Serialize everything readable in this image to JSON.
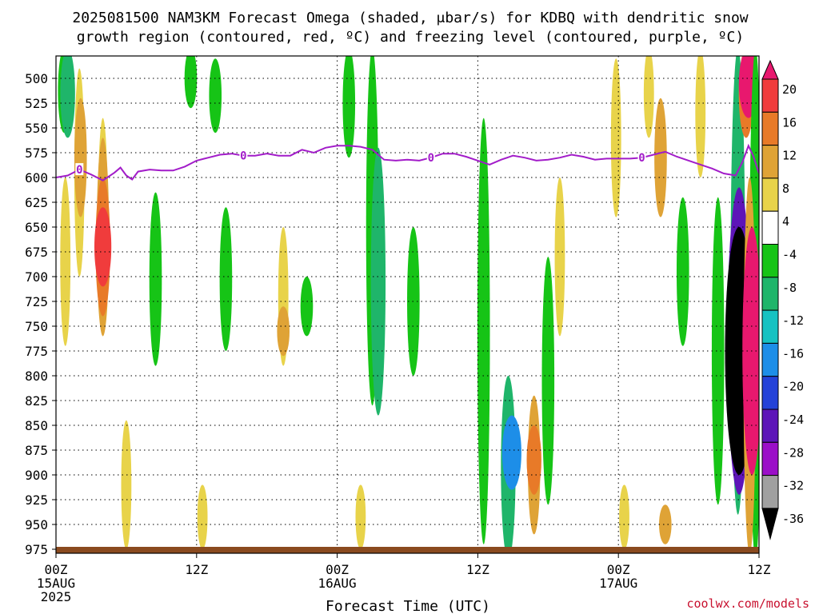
{
  "title": {
    "line1": "2025081500 NAM3KM Forecast Omega (shaded, μbar/s) for KDBQ with dendritic snow",
    "line2": "growth region (contoured, red, ºC) and freezing level (contoured, purple, ºC)"
  },
  "credit": "coolwx.com/models",
  "chart_data": {
    "type": "heatmap",
    "title": "2025081500 NAM3KM Forecast Omega (shaded, μbar/s) for KDBQ with dendritic snow growth region (contoured, red, ºC) and freezing level (contoured, purple, ºC)",
    "xlabel": "Forecast Time (UTC)",
    "ylabel": "",
    "x_range_hours": [
      0,
      60
    ],
    "y_range_mb": [
      470,
      985
    ],
    "y_scale": "pressure (reversed)",
    "grid": true,
    "y_ticks": [
      500,
      525,
      550,
      575,
      600,
      625,
      650,
      675,
      700,
      725,
      750,
      775,
      800,
      825,
      850,
      875,
      900,
      925,
      950,
      975
    ],
    "x_ticks": [
      {
        "hour": 0,
        "lines": [
          "00Z",
          "15AUG",
          "2025"
        ]
      },
      {
        "hour": 12,
        "lines": [
          "12Z"
        ]
      },
      {
        "hour": 24,
        "lines": [
          "00Z",
          "16AUG"
        ]
      },
      {
        "hour": 36,
        "lines": [
          "12Z"
        ]
      },
      {
        "hour": 48,
        "lines": [
          "00Z",
          "17AUG"
        ]
      },
      {
        "hour": 60,
        "lines": [
          "12Z"
        ]
      }
    ],
    "colorbar": {
      "labels": [
        "20",
        "16",
        "12",
        "8",
        "4",
        "-4",
        "-8",
        "-12",
        "-16",
        "-20",
        "-24",
        "-28",
        "-32",
        "-36"
      ],
      "colors": [
        "#e8186e",
        "#f03c3c",
        "#e87a28",
        "#dfa336",
        "#e8d34a",
        "#ffffff",
        "#16c416",
        "#1fb56a",
        "#16c2c2",
        "#1d8ee8",
        "#2442d8",
        "#5d15b8",
        "#9b0fc8",
        "#a0a0a0",
        "#000000"
      ]
    },
    "freezing_level": {
      "value_label": "0",
      "color": "#a21cc9",
      "points": [
        [
          0,
          600
        ],
        [
          1,
          598
        ],
        [
          2,
          592
        ],
        [
          3,
          597
        ],
        [
          4,
          603
        ],
        [
          5,
          595
        ],
        [
          5.5,
          590
        ],
        [
          6,
          598
        ],
        [
          6.5,
          602
        ],
        [
          7,
          594
        ],
        [
          8,
          592
        ],
        [
          9,
          593
        ],
        [
          10,
          593
        ],
        [
          11,
          589
        ],
        [
          12,
          583
        ],
        [
          13,
          580
        ],
        [
          14,
          577
        ],
        [
          15,
          576
        ],
        [
          16,
          578
        ],
        [
          17,
          578
        ],
        [
          18,
          576
        ],
        [
          19,
          578
        ],
        [
          20,
          578
        ],
        [
          21,
          572
        ],
        [
          22,
          575
        ],
        [
          23,
          570
        ],
        [
          24,
          568
        ],
        [
          25,
          568
        ],
        [
          26,
          569
        ],
        [
          27,
          572
        ],
        [
          28,
          582
        ],
        [
          29,
          583
        ],
        [
          30,
          582
        ],
        [
          31,
          583
        ],
        [
          32,
          580
        ],
        [
          33,
          576
        ],
        [
          34,
          576
        ],
        [
          35,
          579
        ],
        [
          36,
          583
        ],
        [
          37,
          587
        ],
        [
          38,
          582
        ],
        [
          39,
          578
        ],
        [
          40,
          580
        ],
        [
          41,
          583
        ],
        [
          42,
          582
        ],
        [
          43,
          580
        ],
        [
          44,
          577
        ],
        [
          45,
          579
        ],
        [
          46,
          582
        ],
        [
          47,
          581
        ],
        [
          48,
          581
        ],
        [
          49,
          581
        ],
        [
          50,
          580
        ],
        [
          51,
          577
        ],
        [
          52,
          574
        ],
        [
          53,
          579
        ],
        [
          54,
          583
        ],
        [
          55,
          587
        ],
        [
          56,
          591
        ],
        [
          57,
          596
        ],
        [
          58,
          598
        ],
        [
          58.6,
          584
        ],
        [
          59.1,
          568
        ],
        [
          59.5,
          578
        ],
        [
          60,
          596
        ]
      ],
      "label_hours": [
        2,
        16,
        32,
        50
      ]
    },
    "omega_regions": [
      {
        "hour": 0.7,
        "mb_top": 470,
        "mb_bottom": 555,
        "value": -8
      },
      {
        "hour": 1.0,
        "mb_top": 470,
        "mb_bottom": 560,
        "value": -12
      },
      {
        "hour": 0.8,
        "mb_top": 600,
        "mb_bottom": 770,
        "value": 4
      },
      {
        "hour": 2.0,
        "mb_top": 490,
        "mb_bottom": 700,
        "value": 4
      },
      {
        "hour": 2.1,
        "mb_top": 520,
        "mb_bottom": 640,
        "value": 8
      },
      {
        "hour": 4.0,
        "mb_top": 540,
        "mb_bottom": 760,
        "value": 4
      },
      {
        "hour": 4.0,
        "mb_top": 560,
        "mb_bottom": 760,
        "value": 8
      },
      {
        "hour": 4.0,
        "mb_top": 600,
        "mb_bottom": 740,
        "value": 12
      },
      {
        "hour": 4.0,
        "mb_top": 630,
        "mb_bottom": 710,
        "value": 16
      },
      {
        "hour": 8.5,
        "mb_top": 615,
        "mb_bottom": 790,
        "value": -8
      },
      {
        "hour": 11.5,
        "mb_top": 470,
        "mb_bottom": 530,
        "value": -8
      },
      {
        "hour": 13.6,
        "mb_top": 480,
        "mb_bottom": 555,
        "value": -8
      },
      {
        "hour": 14.5,
        "mb_top": 630,
        "mb_bottom": 775,
        "value": -8
      },
      {
        "hour": 19.4,
        "mb_top": 650,
        "mb_bottom": 790,
        "value": 4
      },
      {
        "hour": 19.4,
        "mb_top": 730,
        "mb_bottom": 780,
        "value": 8
      },
      {
        "hour": 21.4,
        "mb_top": 700,
        "mb_bottom": 760,
        "value": -8
      },
      {
        "hour": 25.0,
        "mb_top": 470,
        "mb_bottom": 580,
        "value": -8
      },
      {
        "hour": 27.0,
        "mb_top": 470,
        "mb_bottom": 830,
        "value": -8
      },
      {
        "hour": 27.5,
        "mb_top": 570,
        "mb_bottom": 840,
        "value": -12
      },
      {
        "hour": 30.5,
        "mb_top": 650,
        "mb_bottom": 800,
        "value": -8
      },
      {
        "hour": 36.5,
        "mb_top": 540,
        "mb_bottom": 970,
        "value": -8
      },
      {
        "hour": 38.6,
        "mb_top": 800,
        "mb_bottom": 985,
        "value": -12
      },
      {
        "hour": 38.9,
        "mb_top": 840,
        "mb_bottom": 915,
        "value": -20
      },
      {
        "hour": 40.8,
        "mb_top": 820,
        "mb_bottom": 960,
        "value": 8
      },
      {
        "hour": 40.8,
        "mb_top": 850,
        "mb_bottom": 920,
        "value": 12
      },
      {
        "hour": 42.0,
        "mb_top": 680,
        "mb_bottom": 930,
        "value": -8
      },
      {
        "hour": 43.0,
        "mb_top": 600,
        "mb_bottom": 760,
        "value": 4
      },
      {
        "hour": 47.8,
        "mb_top": 480,
        "mb_bottom": 640,
        "value": 4
      },
      {
        "hour": 50.6,
        "mb_top": 470,
        "mb_bottom": 560,
        "value": 4
      },
      {
        "hour": 51.6,
        "mb_top": 520,
        "mb_bottom": 640,
        "value": 8
      },
      {
        "hour": 53.5,
        "mb_top": 620,
        "mb_bottom": 770,
        "value": -8
      },
      {
        "hour": 55.0,
        "mb_top": 470,
        "mb_bottom": 600,
        "value": 4
      },
      {
        "hour": 56.5,
        "mb_top": 620,
        "mb_bottom": 930,
        "value": -8
      },
      {
        "hour": 58.2,
        "mb_top": 470,
        "mb_bottom": 940,
        "value": -12
      },
      {
        "hour": 58.3,
        "mb_top": 610,
        "mb_bottom": 920,
        "value": -28
      },
      {
        "hour": 58.3,
        "mb_top": 650,
        "mb_bottom": 900,
        "value": -36
      },
      {
        "hour": 58.9,
        "mb_top": 470,
        "mb_bottom": 560,
        "value": 12
      },
      {
        "hour": 59.1,
        "mb_top": 470,
        "mb_bottom": 540,
        "value": 20
      },
      {
        "hour": 59.7,
        "mb_top": 470,
        "mb_bottom": 985,
        "value": -8
      },
      {
        "hour": 59.2,
        "mb_top": 600,
        "mb_bottom": 980,
        "value": 8
      },
      {
        "hour": 59.4,
        "mb_top": 650,
        "mb_bottom": 900,
        "value": 20
      },
      {
        "hour": 6.0,
        "mb_top": 845,
        "mb_bottom": 975,
        "value": 4
      },
      {
        "hour": 12.5,
        "mb_top": 910,
        "mb_bottom": 975,
        "value": 4
      },
      {
        "hour": 26.0,
        "mb_top": 910,
        "mb_bottom": 975,
        "value": 4
      },
      {
        "hour": 48.5,
        "mb_top": 910,
        "mb_bottom": 975,
        "value": 4
      },
      {
        "hour": 52.0,
        "mb_top": 930,
        "mb_bottom": 970,
        "value": 8
      }
    ]
  }
}
